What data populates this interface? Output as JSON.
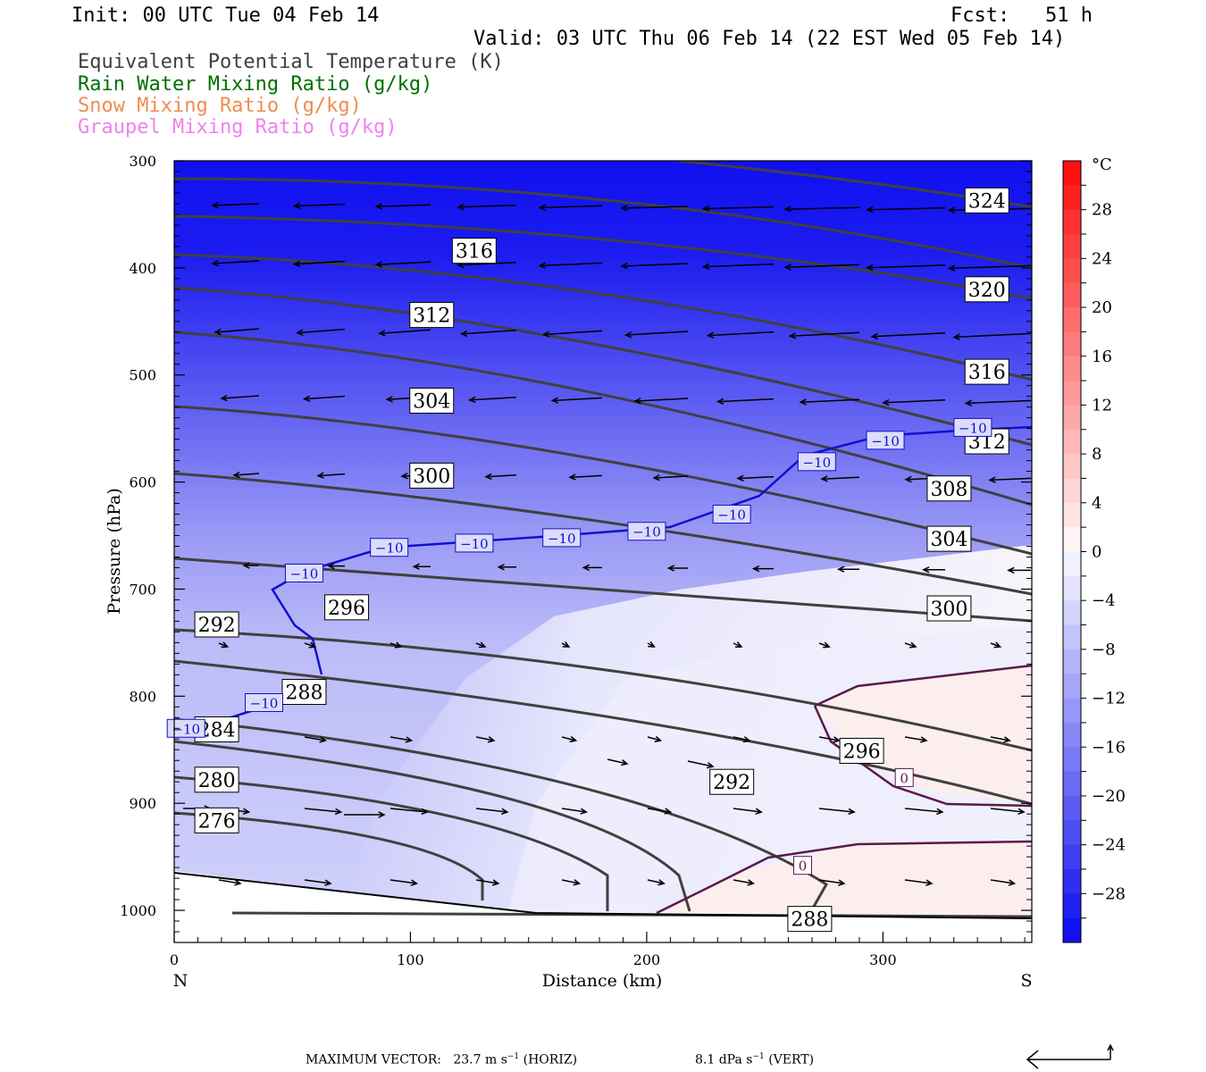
{
  "header": {
    "init": "Init: 00 UTC Tue 04 Feb 14",
    "fcst": "Fcst:   51 h",
    "valid": "Valid: 03 UTC Thu 06 Feb 14 (22 EST Wed 05 Feb 14)"
  },
  "legend": [
    {
      "label": "Equivalent Potential Temperature (K)",
      "color": "#404040"
    },
    {
      "label": "Rain Water Mixing Ratio (g/kg)",
      "color": "#007000"
    },
    {
      "label": "Snow Mixing Ratio (g/kg)",
      "color": "#f08c50"
    },
    {
      "label": "Graupel Mixing Ratio (g/kg)",
      "color": "#ee82ee"
    }
  ],
  "chart_data": {
    "type": "cross-section",
    "xlabel": "Distance (km)",
    "ylabel": "Pressure (hPa)",
    "xlim": [
      0,
      363
    ],
    "ylim": [
      300,
      1030
    ],
    "x_ticks": [
      0,
      100,
      200,
      300
    ],
    "y_ticks": [
      300,
      400,
      500,
      600,
      700,
      800,
      900,
      1000
    ],
    "x_end_labels": {
      "left": "N",
      "right": "S"
    },
    "colorbar": {
      "unit": "°C",
      "tick_labels": [
        "28",
        "24",
        "20",
        "16",
        "12",
        "8",
        "4",
        "0",
        "−4",
        "−8",
        "−12",
        "−16",
        "−20",
        "−24",
        "−28"
      ],
      "tick_values": [
        28,
        24,
        20,
        16,
        12,
        8,
        4,
        0,
        -4,
        -8,
        -12,
        -16,
        -20,
        -24,
        -28
      ],
      "range": [
        -32,
        32
      ]
    },
    "theta_e_labels": [
      {
        "text": "324",
        "x": 344,
        "p": 337
      },
      {
        "text": "316",
        "x": 127,
        "p": 384
      },
      {
        "text": "320",
        "x": 344,
        "p": 420
      },
      {
        "text": "312",
        "x": 109,
        "p": 444
      },
      {
        "text": "316",
        "x": 344,
        "p": 497
      },
      {
        "text": "304",
        "x": 109,
        "p": 524
      },
      {
        "text": "312",
        "x": 344,
        "p": 562
      },
      {
        "text": "300",
        "x": 109,
        "p": 594
      },
      {
        "text": "308",
        "x": 328,
        "p": 606
      },
      {
        "text": "304",
        "x": 328,
        "p": 653
      },
      {
        "text": "296",
        "x": 73,
        "p": 717
      },
      {
        "text": "300",
        "x": 328,
        "p": 718
      },
      {
        "text": "292",
        "x": 18,
        "p": 733
      },
      {
        "text": "288",
        "x": 55,
        "p": 796
      },
      {
        "text": "284",
        "x": 18,
        "p": 831
      },
      {
        "text": "296",
        "x": 291,
        "p": 851
      },
      {
        "text": "280",
        "x": 18,
        "p": 878
      },
      {
        "text": "292",
        "x": 236,
        "p": 880
      },
      {
        "text": "276",
        "x": 18,
        "p": 916
      },
      {
        "text": "288",
        "x": 269,
        "p": 1008
      }
    ],
    "isotherm_labels": [
      {
        "text": "−10",
        "x": 55,
        "p": 685
      },
      {
        "text": "−10",
        "x": 91,
        "p": 661
      },
      {
        "text": "−10",
        "x": 127,
        "p": 657
      },
      {
        "text": "−10",
        "x": 164,
        "p": 652
      },
      {
        "text": "−10",
        "x": 200,
        "p": 646
      },
      {
        "text": "−10",
        "x": 236,
        "p": 630
      },
      {
        "text": "−10",
        "x": 272,
        "p": 581
      },
      {
        "text": "−10",
        "x": 301,
        "p": 561
      },
      {
        "text": "−10",
        "x": 338,
        "p": 549
      },
      {
        "text": "−10",
        "x": 38,
        "p": 806
      },
      {
        "text": "−10",
        "x": 5,
        "p": 830
      },
      {
        "text": "0",
        "x": 309,
        "p": 876
      },
      {
        "text": "0",
        "x": 266,
        "p": 958
      }
    ]
  },
  "footer": {
    "max_vector_label": "MAXIMUM VECTOR:",
    "horiz_value": "23.7 m s",
    "horiz_exp": "−1",
    "horiz_tag": "(HORIZ)",
    "vert_value": "8.1 dPa s",
    "vert_exp": "−1",
    "vert_tag": "(VERT)"
  }
}
